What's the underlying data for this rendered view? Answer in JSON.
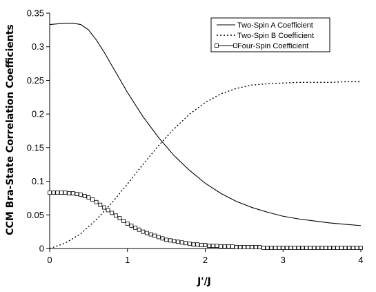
{
  "chart_data": {
    "type": "line",
    "title": "",
    "xlabel": "J'/J",
    "ylabel": "CCM Bra-State Correlation Coefficients",
    "xlim": [
      0,
      4
    ],
    "ylim": [
      0,
      0.35
    ],
    "x_ticks": [
      "0",
      "1",
      "2",
      "3",
      "4"
    ],
    "y_ticks": [
      "0",
      "0.05",
      "0.1",
      "0.15",
      "0.2",
      "0.25",
      "0.3",
      "0.35"
    ],
    "grid": false,
    "legend_position": "top-right",
    "series": [
      {
        "name": "Two-Spin A Coefficient",
        "style": "solid",
        "marker": "none",
        "x": [
          0,
          0.1,
          0.2,
          0.3,
          0.4,
          0.5,
          0.6,
          0.7,
          0.8,
          0.9,
          1.0,
          1.2,
          1.4,
          1.6,
          1.8,
          2.0,
          2.2,
          2.4,
          2.6,
          2.8,
          3.0,
          3.2,
          3.4,
          3.6,
          3.8,
          4.0
        ],
        "y": [
          0.333,
          0.334,
          0.335,
          0.335,
          0.333,
          0.325,
          0.31,
          0.292,
          0.272,
          0.252,
          0.232,
          0.196,
          0.165,
          0.138,
          0.116,
          0.097,
          0.082,
          0.07,
          0.061,
          0.054,
          0.048,
          0.044,
          0.041,
          0.038,
          0.036,
          0.034
        ]
      },
      {
        "name": "Two-Spin B Coefficient",
        "style": "dotted",
        "marker": "none",
        "x": [
          0,
          0.2,
          0.4,
          0.6,
          0.8,
          1.0,
          1.2,
          1.4,
          1.6,
          1.8,
          2.0,
          2.2,
          2.4,
          2.6,
          2.8,
          3.0,
          3.2,
          3.4,
          3.6,
          3.8,
          4.0
        ],
        "y": [
          0.0,
          0.008,
          0.022,
          0.043,
          0.068,
          0.096,
          0.125,
          0.153,
          0.178,
          0.2,
          0.217,
          0.23,
          0.238,
          0.243,
          0.245,
          0.246,
          0.247,
          0.247,
          0.247,
          0.248,
          0.248
        ]
      },
      {
        "name": "Four-Spin Coefficient",
        "style": "solid",
        "marker": "square",
        "x": [
          0,
          0.05,
          0.1,
          0.15,
          0.2,
          0.25,
          0.3,
          0.35,
          0.4,
          0.45,
          0.5,
          0.55,
          0.6,
          0.65,
          0.7,
          0.75,
          0.8,
          0.85,
          0.9,
          0.95,
          1.0,
          1.05,
          1.1,
          1.15,
          1.2,
          1.25,
          1.3,
          1.35,
          1.4,
          1.45,
          1.5,
          1.55,
          1.6,
          1.65,
          1.7,
          1.75,
          1.8,
          1.85,
          1.9,
          1.95,
          2.0,
          2.05,
          2.1,
          2.15,
          2.2,
          2.25,
          2.3,
          2.35,
          2.4,
          2.45,
          2.5,
          2.55,
          2.6,
          2.65,
          2.7,
          2.75,
          2.8,
          2.85,
          2.9,
          2.95,
          3.0,
          3.05,
          3.1,
          3.15,
          3.2,
          3.25,
          3.3,
          3.35,
          3.4,
          3.45,
          3.5,
          3.55,
          3.6,
          3.65,
          3.7,
          3.75,
          3.8,
          3.85,
          3.9,
          3.95,
          4.0
        ],
        "y": [
          0.083,
          0.083,
          0.083,
          0.083,
          0.083,
          0.082,
          0.082,
          0.081,
          0.08,
          0.078,
          0.076,
          0.073,
          0.069,
          0.065,
          0.061,
          0.057,
          0.053,
          0.049,
          0.045,
          0.041,
          0.037,
          0.034,
          0.031,
          0.028,
          0.025,
          0.023,
          0.021,
          0.019,
          0.017,
          0.015,
          0.013,
          0.012,
          0.011,
          0.01,
          0.009,
          0.008,
          0.007,
          0.006,
          0.006,
          0.005,
          0.005,
          0.004,
          0.004,
          0.004,
          0.003,
          0.003,
          0.003,
          0.003,
          0.002,
          0.002,
          0.002,
          0.002,
          0.002,
          0.002,
          0.002,
          0.001,
          0.001,
          0.001,
          0.001,
          0.001,
          0.001,
          0.001,
          0.001,
          0.001,
          0.001,
          0.001,
          0.001,
          0.001,
          0.001,
          0.001,
          0.001,
          0.001,
          0.001,
          0.001,
          0.001,
          0.001,
          0.001,
          0.001,
          0.001,
          0.001,
          0.001
        ]
      }
    ]
  }
}
